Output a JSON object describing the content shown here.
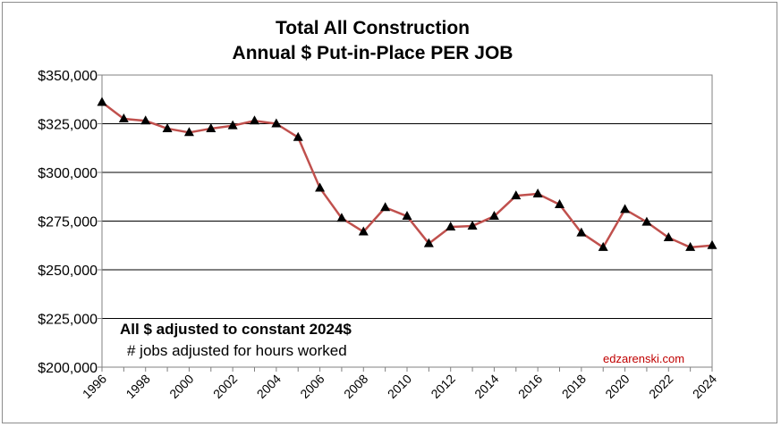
{
  "chart_data": {
    "type": "line",
    "title": "Total All Construction",
    "subtitle": "Annual $ Put-in-Place PER JOB",
    "xlabel": "",
    "ylabel": "",
    "ylim": [
      200000,
      350000
    ],
    "yticks": [
      "$200,000",
      "$225,000",
      "$250,000",
      "$275,000",
      "$300,000",
      "$325,000",
      "$350,000"
    ],
    "xticks": [
      "1996",
      "1998",
      "2000",
      "2002",
      "2004",
      "2006",
      "2008",
      "2010",
      "2012",
      "2014",
      "2016",
      "2018",
      "2020",
      "2022",
      "2024"
    ],
    "grid": true,
    "legend": "none",
    "line_color": "#c0504d",
    "marker": "triangle",
    "x": [
      1996,
      1997,
      1998,
      1999,
      2000,
      2001,
      2002,
      2003,
      2004,
      2005,
      2006,
      2007,
      2008,
      2009,
      2010,
      2011,
      2012,
      2013,
      2014,
      2015,
      2016,
      2017,
      2018,
      2019,
      2020,
      2021,
      2022,
      2023,
      2024
    ],
    "values": [
      336000,
      327500,
      326500,
      322500,
      320500,
      322500,
      324000,
      326500,
      325000,
      318000,
      292000,
      276500,
      269500,
      282000,
      277500,
      263500,
      272000,
      272500,
      277500,
      288000,
      289000,
      283500,
      269000,
      261500,
      281000,
      274500,
      266500,
      261500,
      262500
    ],
    "annotations": {
      "note_bold": "All $ adjusted to constant 2024$",
      "note": "# jobs adjusted for hours worked",
      "credit": "edzarenski.com",
      "credit_color": "#c00000"
    }
  }
}
